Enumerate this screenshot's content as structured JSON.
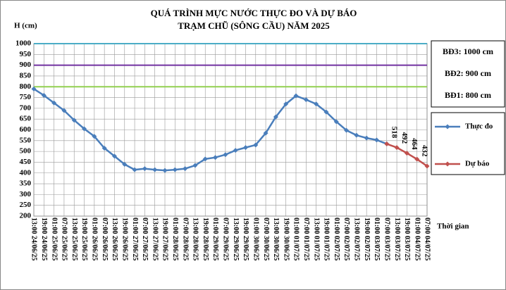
{
  "chart_data": {
    "type": "line",
    "title": [
      "QUÁ TRÌNH MỰC NƯỚC THỰC ĐO VÀ DỰ BÁO",
      "TRẠM CHŨ (SÔNG CẦU) NĂM 2025"
    ],
    "y_label": "H (cm)",
    "x_label": "Thời gian",
    "categories": [
      "13:00 24/06/25",
      "19:00 24/06/25",
      "01:00 25/06/25",
      "07:00 25/06/25",
      "13:00 25/06/25",
      "19:00 25/06/25",
      "01:00 26/06/25",
      "07:00 26/06/25",
      "13:00 26/06/25",
      "19:00 26/06/25",
      "01:00 27/06/25",
      "07:00 27/06/25",
      "13:00 27/06/25",
      "19:00 27/06/25",
      "01:00 28/06/25",
      "07:00 28/06/25",
      "13:00 28/06/25",
      "19:00 28/06/25",
      "01:00 29/06/25",
      "07:00 29/06/25",
      "13:00 29/06/25",
      "19:00 29/06/25",
      "01:00 30/06/25",
      "07:00 30/06/25",
      "13:00 30/06/25",
      "19:00 30/06/25",
      "01:00 01/07/25",
      "07:00 01/07/25",
      "13:00 01/07/25",
      "19:00 01/07/25",
      "01:00 02/07/25",
      "07:00 02/07/25",
      "13:00 02/07/25",
      "19:00 02/07/25",
      "01:00 03/07/25",
      "07:00 03/07/25",
      "13:00 03/07/25",
      "19:00 03/07/25",
      "01:00 04/07/25",
      "07:00 04/07/25"
    ],
    "series": [
      {
        "name": "Thực đo",
        "color": "#4a7ebb",
        "values": [
          790,
          760,
          725,
          690,
          645,
          605,
          570,
          515,
          478,
          440,
          415,
          420,
          415,
          412,
          415,
          420,
          435,
          465,
          472,
          485,
          505,
          518,
          530,
          585,
          660,
          720,
          758,
          740,
          720,
          683,
          638,
          598,
          575,
          562,
          553,
          535,
          null,
          null,
          null,
          null
        ]
      },
      {
        "name": "Dự báo",
        "color": "#c0504d",
        "values": [
          null,
          null,
          null,
          null,
          null,
          null,
          null,
          null,
          null,
          null,
          null,
          null,
          null,
          null,
          null,
          null,
          null,
          null,
          null,
          null,
          null,
          null,
          null,
          null,
          null,
          null,
          null,
          null,
          null,
          null,
          null,
          null,
          null,
          null,
          null,
          535,
          518,
          492,
          464,
          432
        ]
      }
    ],
    "thresholds": [
      {
        "value": 1000,
        "label": "BĐ3: 1000 cm",
        "color": "#4bacc6"
      },
      {
        "value": 900,
        "label": "BĐ2: 900 cm",
        "color": "#7030a0"
      },
      {
        "value": 800,
        "label": "BĐ1: 800 cm",
        "color": "#92d050"
      }
    ],
    "ylim": [
      200,
      1000
    ],
    "yticks": [
      200,
      250,
      300,
      350,
      400,
      450,
      500,
      550,
      600,
      650,
      700,
      750,
      800,
      850,
      900,
      950,
      1000
    ],
    "grid": true
  }
}
